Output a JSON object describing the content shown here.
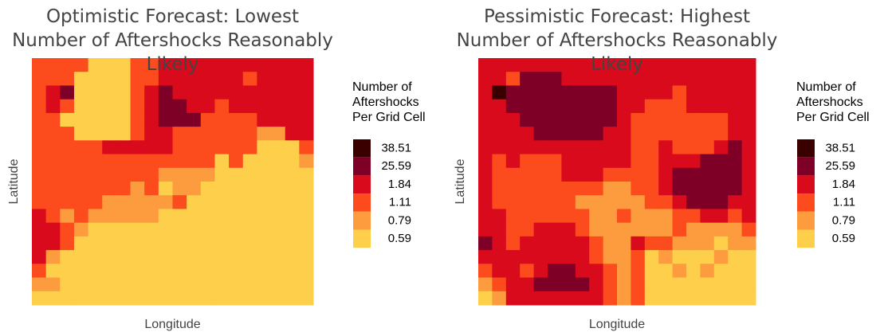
{
  "chart_data": [
    {
      "type": "heatmap",
      "title": "Optimistic Forecast: Lowest Number of Aftershocks Reasonably Likely",
      "x_label": "Longitude",
      "y_label": "Latitude",
      "legend_title": "Number of Aftershocks Per Grid Cell",
      "legend_values": [
        38.51,
        25.59,
        1.84,
        1.11,
        0.79,
        0.59
      ],
      "legend_colors": [
        "#3a0000",
        "#7f0026",
        "#d80a1c",
        "#fc4b1c",
        "#fd9b3f",
        "#fecf4b"
      ],
      "z": [
        [
          1.11,
          1.11,
          1.11,
          1.11,
          0.59,
          0.59,
          0.59,
          1.11,
          1.11,
          1.84,
          1.84,
          1.84,
          1.84,
          1.84,
          1.84,
          1.84,
          1.84,
          1.84,
          1.84,
          1.84
        ],
        [
          1.11,
          1.11,
          1.11,
          0.59,
          0.59,
          0.59,
          0.59,
          1.11,
          1.11,
          1.84,
          1.84,
          1.84,
          1.84,
          1.84,
          1.84,
          1.11,
          1.84,
          1.84,
          1.84,
          1.84
        ],
        [
          1.11,
          1.84,
          25.59,
          0.59,
          0.59,
          0.59,
          0.59,
          1.11,
          1.84,
          25.59,
          1.84,
          1.84,
          1.84,
          1.84,
          1.84,
          1.84,
          1.84,
          1.84,
          1.84,
          1.84
        ],
        [
          1.11,
          1.84,
          1.11,
          0.59,
          0.59,
          0.59,
          0.59,
          1.11,
          1.84,
          25.59,
          25.59,
          1.84,
          1.84,
          1.11,
          1.84,
          1.84,
          1.84,
          1.84,
          1.84,
          1.84
        ],
        [
          1.11,
          1.11,
          0.59,
          0.59,
          0.59,
          0.59,
          0.59,
          1.11,
          1.84,
          25.59,
          25.59,
          25.59,
          1.11,
          1.11,
          1.11,
          1.11,
          1.84,
          1.84,
          1.84,
          1.84
        ],
        [
          1.11,
          1.11,
          1.11,
          0.59,
          0.59,
          0.59,
          0.59,
          1.11,
          1.84,
          1.84,
          1.11,
          1.11,
          1.11,
          1.11,
          1.11,
          1.11,
          0.79,
          0.79,
          1.84,
          1.84
        ],
        [
          1.11,
          1.11,
          1.11,
          1.11,
          1.11,
          1.84,
          1.84,
          1.84,
          1.84,
          1.84,
          1.11,
          1.11,
          1.11,
          1.11,
          1.11,
          1.11,
          0.59,
          0.59,
          0.59,
          1.11
        ],
        [
          1.11,
          1.11,
          1.11,
          1.11,
          1.11,
          1.11,
          1.11,
          1.11,
          1.11,
          1.11,
          1.11,
          1.11,
          1.11,
          0.59,
          1.11,
          0.59,
          0.59,
          0.59,
          0.59,
          0.79
        ],
        [
          1.11,
          1.11,
          1.11,
          1.11,
          1.11,
          1.11,
          1.11,
          1.11,
          1.11,
          0.79,
          0.79,
          0.79,
          0.79,
          0.59,
          0.59,
          0.59,
          0.59,
          0.59,
          0.59,
          0.59
        ],
        [
          1.11,
          1.11,
          1.11,
          1.11,
          1.11,
          1.11,
          1.11,
          0.79,
          1.11,
          0.59,
          0.79,
          0.79,
          0.59,
          0.59,
          0.59,
          0.59,
          0.59,
          0.59,
          0.59,
          0.59
        ],
        [
          1.11,
          1.11,
          1.11,
          1.11,
          1.11,
          0.79,
          0.79,
          0.79,
          0.79,
          0.79,
          1.11,
          0.59,
          0.59,
          0.59,
          0.59,
          0.59,
          0.59,
          0.59,
          0.59,
          0.59
        ],
        [
          1.84,
          1.11,
          0.79,
          1.11,
          0.79,
          0.79,
          0.79,
          0.79,
          0.79,
          0.59,
          0.59,
          0.59,
          0.59,
          0.59,
          0.59,
          0.59,
          0.59,
          0.59,
          0.59,
          0.59
        ],
        [
          1.84,
          1.84,
          1.11,
          0.79,
          0.59,
          0.59,
          0.59,
          0.59,
          0.59,
          0.59,
          0.59,
          0.59,
          0.59,
          0.59,
          0.59,
          0.59,
          0.59,
          0.59,
          0.59,
          0.59
        ],
        [
          1.84,
          1.84,
          1.11,
          0.59,
          0.59,
          0.59,
          0.59,
          0.59,
          0.59,
          0.59,
          0.59,
          0.59,
          0.59,
          0.59,
          0.59,
          0.59,
          0.59,
          0.59,
          0.59,
          0.59
        ],
        [
          1.84,
          0.79,
          0.59,
          0.59,
          0.59,
          0.59,
          0.59,
          0.59,
          0.59,
          0.59,
          0.59,
          0.59,
          0.59,
          0.59,
          0.59,
          0.59,
          0.59,
          0.59,
          0.59,
          0.59
        ],
        [
          1.11,
          0.59,
          0.59,
          0.59,
          0.59,
          0.59,
          0.59,
          0.59,
          0.59,
          0.59,
          0.59,
          0.59,
          0.59,
          0.59,
          0.59,
          0.59,
          0.59,
          0.59,
          0.59,
          0.59
        ],
        [
          0.79,
          0.79,
          0.59,
          0.59,
          0.59,
          0.59,
          0.59,
          0.59,
          0.59,
          0.59,
          0.59,
          0.59,
          0.59,
          0.59,
          0.59,
          0.59,
          0.59,
          0.59,
          0.59,
          0.59
        ],
        [
          0.59,
          0.59,
          0.59,
          0.59,
          0.59,
          0.59,
          0.59,
          0.59,
          0.59,
          0.59,
          0.59,
          0.59,
          0.59,
          0.59,
          0.59,
          0.59,
          0.59,
          0.59,
          0.59,
          0.59
        ]
      ]
    },
    {
      "type": "heatmap",
      "title": "Pessimistic Forecast: Highest Number of Aftershocks Reasonably Likely",
      "x_label": "Longitude",
      "y_label": "Latitude",
      "legend_title": "Number of Aftershocks Per Grid Cell",
      "legend_values": [
        38.51,
        25.59,
        1.84,
        1.11,
        0.79,
        0.59
      ],
      "legend_colors": [
        "#3a0000",
        "#7f0026",
        "#d80a1c",
        "#fc4b1c",
        "#fd9b3f",
        "#fecf4b"
      ],
      "z": [
        [
          1.84,
          1.84,
          1.84,
          1.84,
          1.84,
          1.84,
          1.84,
          1.84,
          1.84,
          1.84,
          1.84,
          1.84,
          1.84,
          1.84,
          1.84,
          1.84,
          1.84,
          1.84,
          1.84,
          1.84
        ],
        [
          1.84,
          1.84,
          1.11,
          25.59,
          25.59,
          25.59,
          1.84,
          1.84,
          1.84,
          1.84,
          1.84,
          1.84,
          1.84,
          1.84,
          1.84,
          1.84,
          1.84,
          1.84,
          1.84,
          1.84
        ],
        [
          1.84,
          38.51,
          25.59,
          25.59,
          25.59,
          25.59,
          25.59,
          25.59,
          25.59,
          25.59,
          1.84,
          1.84,
          1.84,
          1.84,
          1.11,
          1.84,
          1.84,
          1.84,
          1.84,
          1.84
        ],
        [
          1.84,
          1.84,
          25.59,
          25.59,
          25.59,
          25.59,
          25.59,
          25.59,
          25.59,
          25.59,
          1.84,
          1.84,
          1.11,
          1.11,
          1.11,
          1.84,
          1.84,
          1.84,
          1.84,
          1.84
        ],
        [
          1.84,
          1.84,
          1.84,
          25.59,
          25.59,
          25.59,
          25.59,
          25.59,
          25.59,
          25.59,
          1.84,
          1.11,
          1.11,
          1.11,
          1.11,
          1.11,
          1.11,
          1.11,
          1.84,
          1.84
        ],
        [
          1.84,
          1.84,
          1.84,
          1.84,
          25.59,
          25.59,
          25.59,
          25.59,
          25.59,
          1.84,
          1.84,
          1.11,
          1.11,
          1.11,
          1.11,
          1.11,
          1.11,
          1.11,
          1.84,
          1.84
        ],
        [
          1.84,
          1.84,
          1.84,
          1.84,
          1.84,
          1.84,
          1.84,
          1.84,
          1.84,
          1.84,
          1.84,
          1.11,
          1.11,
          1.84,
          1.11,
          1.11,
          1.11,
          1.84,
          25.59,
          1.84
        ],
        [
          1.84,
          1.11,
          1.84,
          1.11,
          1.11,
          1.11,
          1.84,
          1.84,
          1.84,
          1.84,
          1.84,
          1.11,
          1.11,
          1.84,
          1.84,
          1.84,
          25.59,
          25.59,
          25.59,
          1.84
        ],
        [
          1.84,
          1.11,
          1.11,
          1.11,
          1.11,
          1.11,
          1.84,
          1.84,
          1.84,
          1.11,
          1.11,
          1.11,
          1.11,
          1.84,
          25.59,
          25.59,
          25.59,
          25.59,
          25.59,
          1.84
        ],
        [
          1.84,
          1.11,
          1.11,
          1.11,
          1.11,
          1.11,
          1.11,
          1.11,
          1.11,
          0.79,
          0.79,
          1.11,
          1.11,
          1.84,
          25.59,
          25.59,
          25.59,
          25.59,
          25.59,
          1.84
        ],
        [
          1.84,
          1.11,
          1.11,
          1.11,
          1.11,
          1.11,
          1.11,
          0.79,
          0.79,
          0.79,
          0.79,
          0.79,
          1.11,
          1.11,
          1.84,
          25.59,
          25.59,
          25.59,
          1.84,
          1.84
        ],
        [
          1.84,
          1.84,
          1.11,
          1.11,
          1.11,
          1.11,
          1.11,
          1.11,
          0.79,
          0.79,
          1.11,
          0.79,
          0.79,
          0.79,
          1.11,
          1.11,
          1.84,
          1.84,
          1.11,
          1.84
        ],
        [
          1.84,
          1.84,
          1.11,
          1.11,
          1.84,
          1.84,
          1.84,
          1.11,
          0.79,
          0.79,
          0.79,
          0.79,
          0.79,
          0.79,
          1.11,
          0.79,
          0.79,
          0.79,
          0.79,
          1.11
        ],
        [
          25.59,
          1.84,
          1.11,
          1.84,
          1.84,
          1.84,
          1.84,
          1.84,
          1.11,
          0.79,
          0.79,
          1.84,
          1.11,
          1.11,
          0.79,
          0.79,
          0.79,
          0.59,
          0.79,
          0.79
        ],
        [
          1.84,
          1.84,
          1.84,
          1.84,
          1.84,
          1.84,
          1.84,
          1.84,
          1.11,
          0.79,
          0.79,
          1.11,
          0.59,
          0.79,
          0.59,
          0.59,
          0.59,
          0.79,
          0.59,
          0.59
        ],
        [
          1.11,
          1.84,
          1.84,
          1.11,
          1.84,
          25.59,
          25.59,
          1.84,
          1.84,
          1.11,
          0.79,
          1.11,
          0.59,
          0.59,
          0.79,
          0.59,
          0.79,
          0.59,
          0.59,
          0.59
        ],
        [
          0.79,
          1.11,
          1.84,
          1.84,
          25.59,
          25.59,
          25.59,
          25.59,
          1.84,
          1.11,
          0.79,
          1.11,
          0.59,
          0.59,
          0.59,
          0.59,
          0.59,
          0.59,
          0.59,
          0.59
        ],
        [
          0.59,
          0.79,
          1.84,
          1.84,
          1.84,
          1.84,
          1.84,
          1.84,
          1.84,
          1.11,
          0.79,
          1.11,
          0.59,
          0.59,
          0.59,
          0.59,
          0.59,
          0.59,
          0.59,
          0.59
        ]
      ]
    }
  ]
}
